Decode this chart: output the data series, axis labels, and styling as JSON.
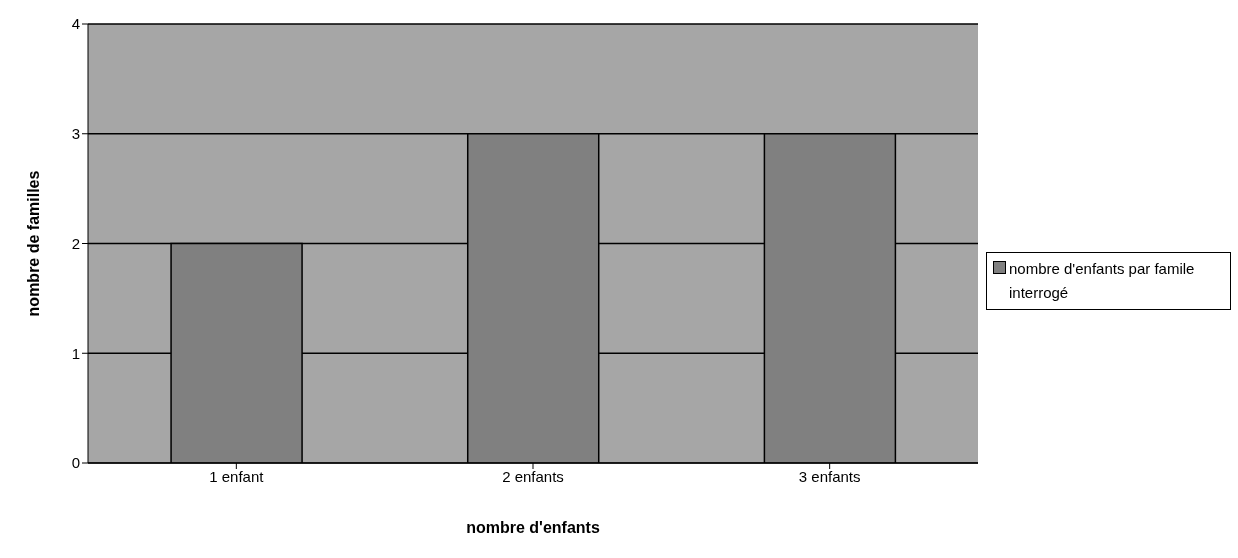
{
  "chart_data": {
    "type": "bar",
    "xlabel": "nombre d'enfants",
    "ylabel": "nombre de familles",
    "categories": [
      "1 enfant",
      "2 enfants",
      "3 enfants"
    ],
    "series": [
      {
        "name": "nombre d'enfants par famile interrogé",
        "color": "#808080",
        "values": [
          2,
          3,
          3
        ]
      }
    ],
    "ylim": [
      0,
      4
    ],
    "yticks": [
      0,
      1,
      2,
      3,
      4
    ],
    "grid": "y",
    "legend": "right"
  }
}
